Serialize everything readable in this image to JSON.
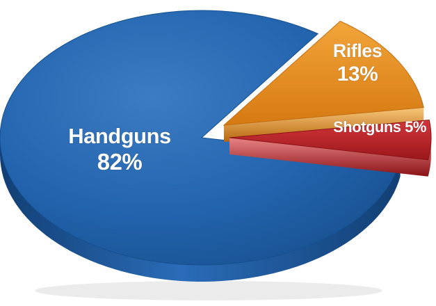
{
  "chart_data": {
    "type": "pie",
    "style": "3d-exploded",
    "categories": [
      "Handguns",
      "Rifles",
      "Shotguns"
    ],
    "values": [
      82,
      13,
      5
    ],
    "unit": "%",
    "title": "",
    "labels": {
      "handguns_name": "Handguns",
      "handguns_pct": "82%",
      "rifles_name": "Rifles",
      "rifles_pct": "13%",
      "shotguns_full": "Shotguns 5%"
    },
    "colors": {
      "Handguns": "#1f5ea8",
      "Rifles": "#e38b1f",
      "Shotguns": "#b31e22"
    }
  }
}
